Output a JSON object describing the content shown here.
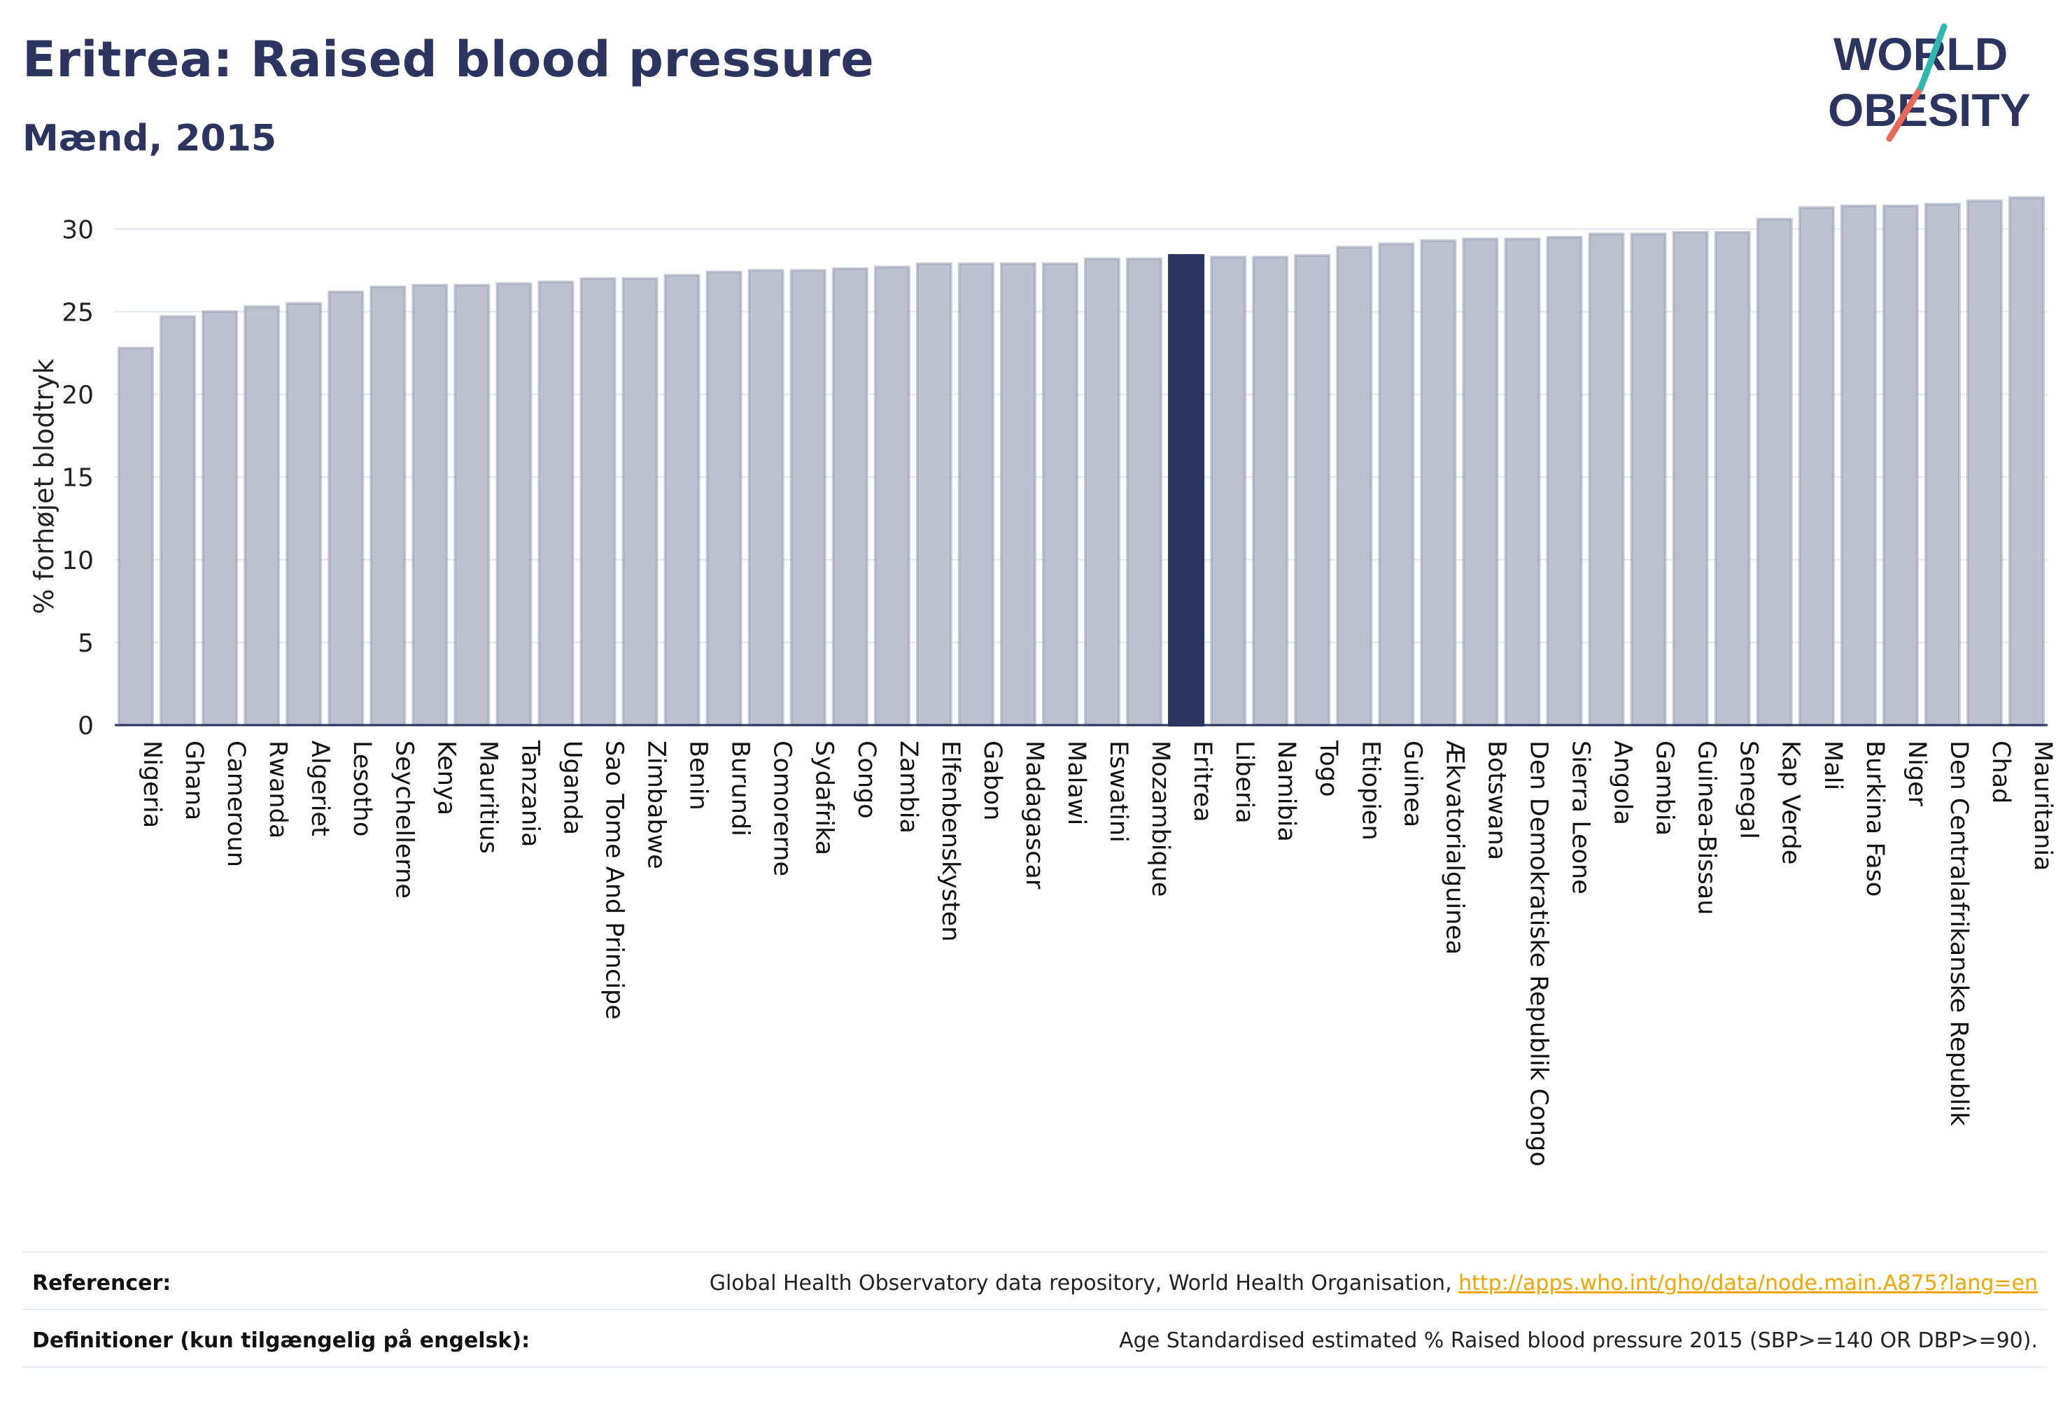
{
  "header": {
    "title": "Eritrea: Raised blood pressure",
    "subtitle": "Mænd, 2015"
  },
  "logo": {
    "line1": "WORLD",
    "line2": "OBESITY"
  },
  "colors": {
    "bar": "#bcc0cf",
    "bar_border": "#9aa0b6",
    "highlight": "#2b3560",
    "grid": "#e3e5ec",
    "axis": "#2b3560",
    "link": "#f0a500"
  },
  "chart_data": {
    "type": "bar",
    "ylabel": "% forhøjet blodtryk",
    "ylim": [
      0,
      32
    ],
    "yticks": [
      0,
      5,
      10,
      15,
      20,
      25,
      30
    ],
    "highlight": "Eritrea",
    "categories": [
      "Nigeria",
      "Ghana",
      "Cameroun",
      "Rwanda",
      "Algeriet",
      "Lesotho",
      "Seychellerne",
      "Kenya",
      "Mauritius",
      "Tanzania",
      "Uganda",
      "Sao Tome And Principe",
      "Zimbabwe",
      "Benin",
      "Burundi",
      "Comorerne",
      "Sydafrika",
      "Congo",
      "Zambia",
      "Elfenbenskysten",
      "Gabon",
      "Madagascar",
      "Malawi",
      "Eswatini",
      "Mozambique",
      "Eritrea",
      "Liberia",
      "Namibia",
      "Togo",
      "Etiopien",
      "Guinea",
      "Ækvatorialguinea",
      "Botswana",
      "Den Demokratiske Republik Congo",
      "Sierra Leone",
      "Angola",
      "Gambia",
      "Guinea-Bissau",
      "Senegal",
      "Kap Verde",
      "Mali",
      "Burkina Faso",
      "Niger",
      "Den Centralafrikanske Republik",
      "Chad",
      "Mauritania"
    ],
    "values": [
      22.8,
      24.7,
      25.0,
      25.3,
      25.5,
      26.2,
      26.5,
      26.6,
      26.6,
      26.7,
      26.8,
      27.0,
      27.0,
      27.2,
      27.4,
      27.5,
      27.5,
      27.6,
      27.7,
      27.9,
      27.9,
      27.9,
      27.9,
      28.2,
      28.2,
      28.4,
      28.3,
      28.3,
      28.4,
      28.9,
      29.1,
      29.3,
      29.4,
      29.4,
      29.5,
      29.7,
      29.7,
      29.8,
      29.8,
      30.6,
      31.3,
      31.4,
      31.4,
      31.5,
      31.7,
      31.9
    ],
    "grid": true
  },
  "footer": {
    "references_label": "Referencer:",
    "references_text": "Global Health Observatory data repository, World Health Organisation, ",
    "references_link": "http://apps.who.int/gho/data/node.main.A875?lang=en",
    "definitions_label": "Definitioner (kun tilgængelig på engelsk):",
    "definitions_text": "Age Standardised estimated % Raised blood pressure 2015 (SBP>=140 OR DBP>=90)."
  }
}
